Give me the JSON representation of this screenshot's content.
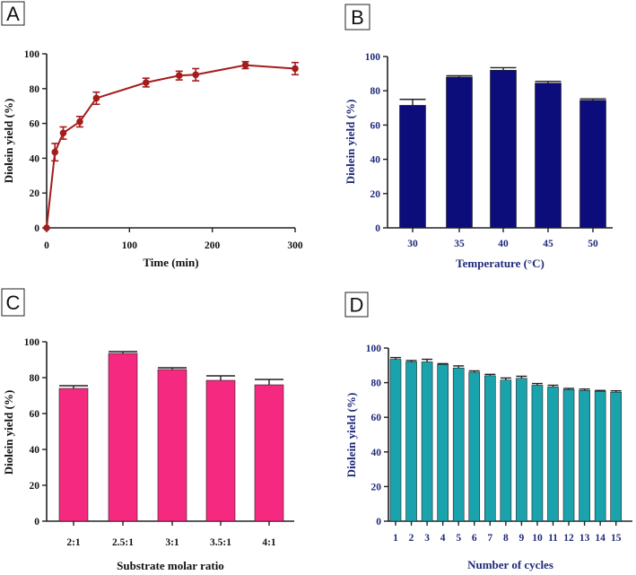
{
  "colors": {
    "panel_a": "#a51c1c",
    "panel_b": "#0c0c7a",
    "panel_c": "#f5297f",
    "panel_d": "#1aa3ad"
  },
  "chart_data": [
    {
      "panel": "A",
      "type": "line",
      "title": "",
      "xlabel": "Time (min)",
      "ylabel": "Diolein yield (%)",
      "x": [
        0,
        10,
        20,
        40,
        60,
        120,
        160,
        180,
        240,
        300
      ],
      "values": [
        0,
        43.5,
        54.5,
        61,
        74.5,
        83.5,
        87.5,
        88,
        93.5,
        91.5
      ],
      "errors": [
        0,
        5,
        3.5,
        3,
        3.5,
        2.5,
        2.5,
        3.5,
        2,
        3.5
      ],
      "xticks": [
        0,
        100,
        200,
        300
      ],
      "yticks": [
        0,
        20,
        40,
        60,
        80,
        100
      ],
      "xlim": [
        0,
        300
      ],
      "ylim": [
        0,
        100
      ]
    },
    {
      "panel": "B",
      "type": "bar",
      "title": "",
      "xlabel": "Temperature (°C)",
      "ylabel": "Diolein yield (%)",
      "categories": [
        "30",
        "35",
        "40",
        "45",
        "50"
      ],
      "values": [
        71.5,
        88,
        92,
        84.5,
        74.5
      ],
      "errors": [
        3.5,
        0.8,
        1.5,
        1,
        0.8
      ],
      "yticks": [
        0,
        20,
        40,
        60,
        80,
        100
      ],
      "ylim": [
        0,
        100
      ]
    },
    {
      "panel": "C",
      "type": "bar",
      "title": "",
      "xlabel": "Substrate molar ratio",
      "ylabel": "Diolein yield (%)",
      "categories": [
        "2:1",
        "2.5:1",
        "3:1",
        "3.5:1",
        "4:1"
      ],
      "values": [
        74,
        93.5,
        84.5,
        78.5,
        76
      ],
      "errors": [
        1.5,
        1,
        1,
        2.5,
        3
      ],
      "yticks": [
        0,
        20,
        40,
        60,
        80,
        100
      ],
      "ylim": [
        0,
        100
      ]
    },
    {
      "panel": "D",
      "type": "bar",
      "title": "",
      "xlabel": "Number of cycles",
      "ylabel": "Diolein yield (%)",
      "categories": [
        "1",
        "2",
        "3",
        "4",
        "5",
        "6",
        "7",
        "8",
        "9",
        "10",
        "11",
        "12",
        "13",
        "14",
        "15"
      ],
      "values": [
        93.5,
        92,
        92,
        90.5,
        88.5,
        86,
        84,
        81.5,
        82.5,
        78.5,
        77.5,
        76,
        75.5,
        75,
        74.5
      ],
      "errors": [
        1,
        0.8,
        1.5,
        0.5,
        1.2,
        0.8,
        0.8,
        1.2,
        1.2,
        1,
        1,
        0.7,
        0.8,
        0.5,
        0.8
      ],
      "yticks": [
        0,
        20,
        40,
        60,
        80,
        100
      ],
      "ylim": [
        0,
        100
      ]
    }
  ]
}
